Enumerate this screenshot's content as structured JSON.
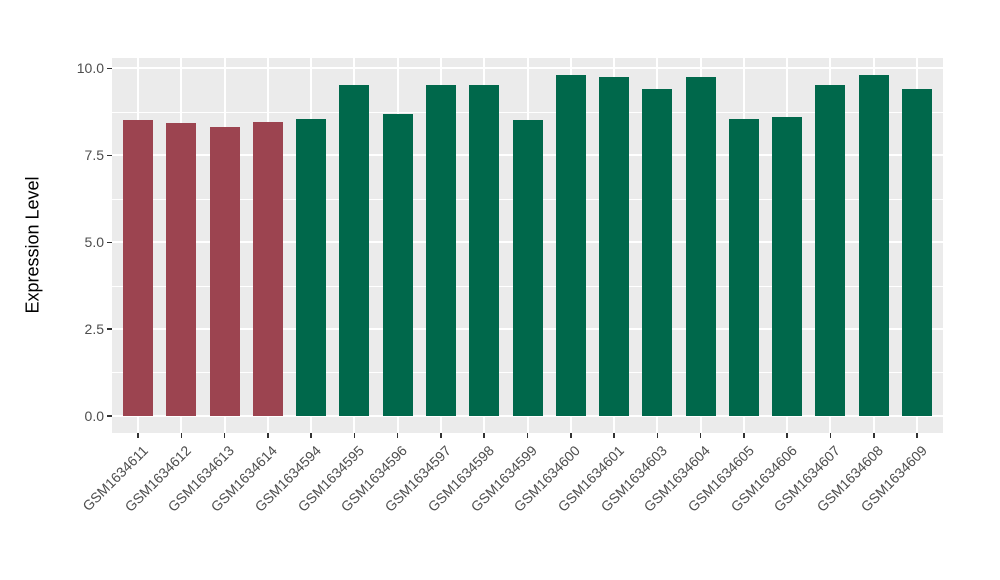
{
  "chart_data": {
    "type": "bar",
    "title": "",
    "xlabel": "",
    "ylabel": "Expression Level",
    "legend": "none",
    "grid": true,
    "categories": [
      "GSM1634611",
      "GSM1634612",
      "GSM1634613",
      "GSM1634614",
      "GSM1634594",
      "GSM1634595",
      "GSM1634596",
      "GSM1634597",
      "GSM1634598",
      "GSM1634599",
      "GSM1634600",
      "GSM1634601",
      "GSM1634603",
      "GSM1634604",
      "GSM1634605",
      "GSM1634606",
      "GSM1634607",
      "GSM1634608",
      "GSM1634609"
    ],
    "values": [
      8.52,
      8.43,
      8.32,
      8.46,
      8.55,
      9.5,
      8.67,
      9.51,
      9.5,
      8.52,
      9.8,
      9.73,
      9.39,
      9.73,
      8.53,
      8.58,
      9.52,
      9.8,
      9.4
    ],
    "bar_groups": [
      0,
      0,
      0,
      0,
      1,
      1,
      1,
      1,
      1,
      1,
      1,
      1,
      1,
      1,
      1,
      1,
      1,
      1,
      1
    ],
    "group_colors": [
      "#9C4450",
      "#00684B"
    ],
    "yaxis": {
      "major_ticks": [
        0,
        2.5,
        5,
        7.5,
        10
      ],
      "major_tick_labels": [
        "0.0",
        "2.5",
        "5.0",
        "7.5",
        "10.0"
      ],
      "minor_ticks": [
        1.25,
        3.75,
        6.25,
        8.75
      ],
      "display_min": -0.49,
      "display_max": 10.29
    },
    "styles": {
      "panel_bg": "#EBEBEB",
      "grid_color": "#FFFFFF",
      "tick_color": "#333333",
      "tick_label_color": "#4D4D4D",
      "axis_title_color": "#000000",
      "figure_bg": "#FFFFFF"
    }
  }
}
